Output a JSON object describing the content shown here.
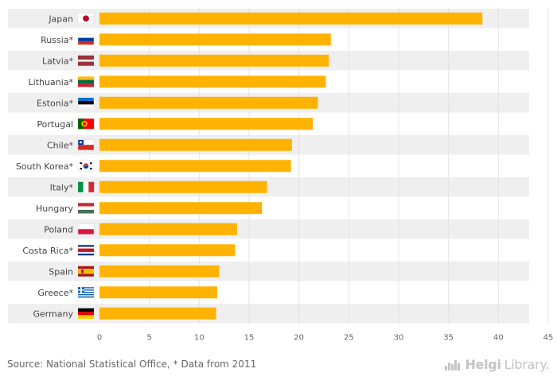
{
  "chart_data": {
    "type": "bar",
    "orientation": "horizontal",
    "categories": [
      "Japan",
      "Russia*",
      "Latvia*",
      "Lithuania*",
      "Estonia*",
      "Portugal",
      "Chile*",
      "South Korea*",
      "Italy*",
      "Hungary",
      "Poland",
      "Costa Rica*",
      "Spain",
      "Greece*",
      "Germany"
    ],
    "values": [
      38.4,
      23.2,
      23.0,
      22.7,
      21.9,
      21.4,
      19.3,
      19.2,
      16.8,
      16.3,
      13.8,
      13.6,
      12.0,
      11.8,
      11.7
    ],
    "xlim": [
      0,
      45
    ],
    "xticks": [
      0,
      5,
      10,
      15,
      20,
      25,
      30,
      35,
      40,
      45
    ],
    "title": "",
    "xlabel": "",
    "ylabel": "",
    "grid": true,
    "colors": {
      "bar": "#FFB300",
      "band": "#EFEFEF",
      "grid": "#E3E3E3",
      "text": "#444444",
      "tick": "#666666"
    },
    "flags": [
      "japan-flag-icon",
      "russia-flag-icon",
      "latvia-flag-icon",
      "lithuania-flag-icon",
      "estonia-flag-icon",
      "portugal-flag-icon",
      "chile-flag-icon",
      "south-korea-flag-icon",
      "italy-flag-icon",
      "hungary-flag-icon",
      "poland-flag-icon",
      "costa-rica-flag-icon",
      "spain-flag-icon",
      "greece-flag-icon",
      "germany-flag-icon"
    ]
  },
  "footer": {
    "source": "Source: National Statistical Office, * Data from 2011"
  },
  "branding": {
    "icon": "bar-chart-logo-icon",
    "name_part1": "Helgi",
    "name_part2": "Library."
  }
}
